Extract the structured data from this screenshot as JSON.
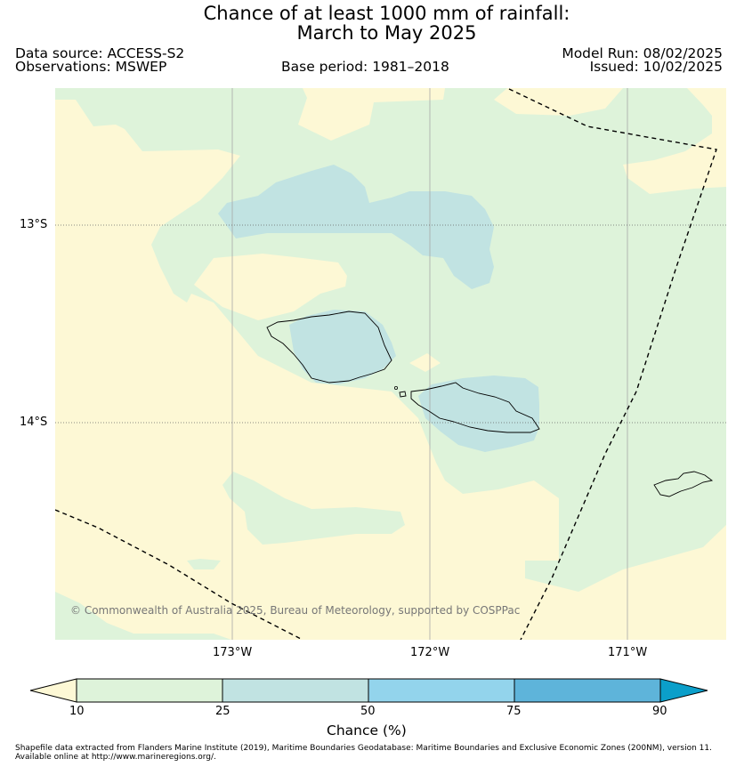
{
  "header": {
    "title_line1": "Chance of at least 1000 mm of rainfall:",
    "title_line2": "March to May 2025",
    "data_source": "Data source: ACCESS-S2",
    "observations": "Observations: MSWEP",
    "base_period": "Base period: 1981–2018",
    "model_run": "Model Run: 08/02/2025",
    "issued": "Issued: 10/02/2025"
  },
  "map": {
    "lat_labels": [
      "13°S",
      "14°S"
    ],
    "lon_labels": [
      "173°W",
      "172°W",
      "171°W"
    ],
    "copyright": "© Commonwealth of Australia 2025, Bureau of Meteorology, supported by COSPPac"
  },
  "colorbar": {
    "ticks": [
      "10",
      "25",
      "50",
      "75",
      "90"
    ],
    "label": "Chance (%)",
    "colors": [
      "#fdf8d5",
      "#def3da",
      "#c1e3e2",
      "#93d4ec",
      "#5eb4da",
      "#0b9fca"
    ]
  },
  "footer": {
    "line1": "Shapefile data extracted from Flanders Marine Institute (2019), Maritime Boundaries Geodatabase: Maritime Boundaries and Exclusive Economic Zones (200NM), version 11.",
    "line2": "Available online at http://www.marineregions.org/."
  }
}
